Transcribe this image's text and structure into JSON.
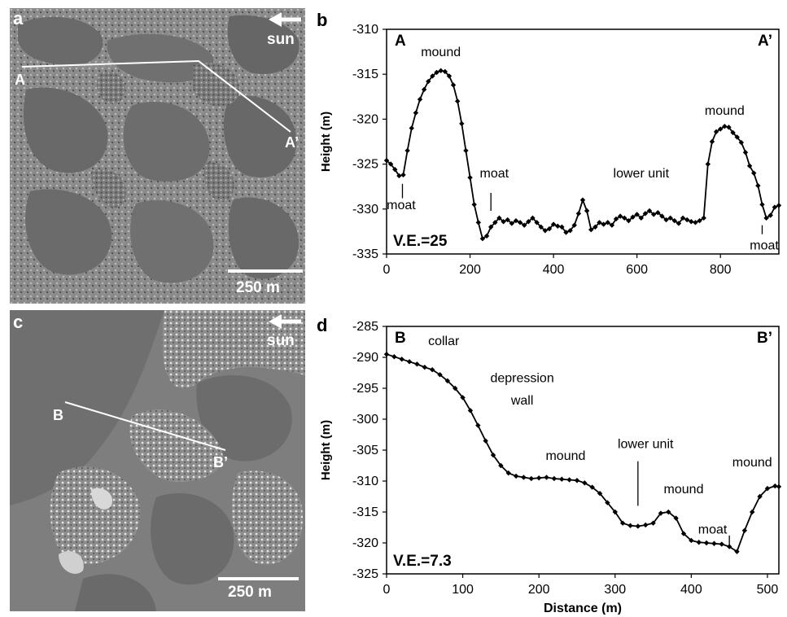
{
  "panels": {
    "a": {
      "letter": "a",
      "sun_label": "sun",
      "scale_label": "250 m",
      "profile_start": "A",
      "profile_end": "A’"
    },
    "c": {
      "letter": "c",
      "sun_label": "sun",
      "scale_label": "250 m",
      "profile_start": "B",
      "profile_end": "B’"
    }
  },
  "chart_data": [
    {
      "id": "b",
      "type": "line",
      "panel_letter": "b",
      "title": "",
      "xlabel": "",
      "ylabel": "Height (m)",
      "xlim": [
        0,
        940
      ],
      "ylim": [
        -335,
        -310
      ],
      "x_ticks": [
        0,
        200,
        400,
        600,
        800
      ],
      "y_ticks": [
        -335,
        -330,
        -325,
        -320,
        -315,
        -310
      ],
      "corner_left": "A",
      "corner_right": "A’",
      "ve_label": "V.E.=25",
      "marker": "diamond",
      "grid": false,
      "series": [
        {
          "x": [
            0,
            10,
            20,
            30,
            40,
            50,
            60,
            70,
            80,
            90,
            100,
            110,
            120,
            130,
            140,
            150,
            160,
            170,
            180,
            190,
            200,
            210,
            220,
            230,
            240,
            250,
            260,
            270,
            280,
            290,
            300,
            310,
            320,
            330,
            340,
            350,
            360,
            370,
            380,
            390,
            400,
            410,
            420,
            430,
            440,
            450,
            460,
            470,
            480,
            490,
            500,
            510,
            520,
            530,
            540,
            550,
            560,
            570,
            580,
            590,
            600,
            610,
            620,
            630,
            640,
            650,
            660,
            670,
            680,
            690,
            700,
            710,
            720,
            730,
            740,
            750,
            760,
            770,
            780,
            790,
            800,
            810,
            820,
            830,
            840,
            850,
            860,
            870,
            880,
            890,
            900,
            910,
            920,
            930,
            940
          ],
          "y": [
            -324.6,
            -325.0,
            -325.6,
            -326.3,
            -326.2,
            -323.5,
            -321.0,
            -319.3,
            -317.8,
            -316.7,
            -315.8,
            -315.2,
            -314.8,
            -314.6,
            -314.7,
            -315.2,
            -316.2,
            -318.0,
            -320.5,
            -323.5,
            -326.5,
            -329.5,
            -331.5,
            -333.3,
            -333.0,
            -332.0,
            -331.5,
            -331.0,
            -331.4,
            -331.2,
            -331.6,
            -331.3,
            -331.5,
            -331.8,
            -331.4,
            -331.0,
            -331.5,
            -332.0,
            -332.4,
            -332.2,
            -331.7,
            -331.9,
            -332.0,
            -332.6,
            -332.4,
            -331.8,
            -330.5,
            -329.0,
            -330.2,
            -332.3,
            -332.0,
            -331.5,
            -331.7,
            -331.5,
            -331.8,
            -331.1,
            -330.8,
            -331.0,
            -331.3,
            -330.9,
            -330.6,
            -331.0,
            -330.5,
            -330.2,
            -330.6,
            -330.4,
            -330.8,
            -331.2,
            -331.0,
            -331.3,
            -331.6,
            -331.0,
            -331.2,
            -331.4,
            -331.5,
            -331.3,
            -331.0,
            -325.0,
            -322.5,
            -321.4,
            -321.1,
            -320.8,
            -320.9,
            -321.5,
            -322.0,
            -322.6,
            -323.7,
            -325.2,
            -326.0,
            -327.4,
            -329.5,
            -331.0,
            -330.7,
            -329.8,
            -329.6
          ]
        }
      ],
      "annotations": [
        {
          "text": "mound",
          "x": 130,
          "y": -313.0
        },
        {
          "text": "moat",
          "x": 35,
          "y": -330.0,
          "line_x": 38,
          "line_y_from": -327.2,
          "line_y_to": -328.8
        },
        {
          "text": "moat",
          "x": 258,
          "y": -326.5,
          "line_x": 250,
          "line_y_from": -328.2,
          "line_y_to": -330.2
        },
        {
          "text": "lower unit",
          "x": 610,
          "y": -326.5
        },
        {
          "text": "mound",
          "x": 810,
          "y": -319.5
        },
        {
          "text": "moat",
          "x": 905,
          "y": -334.5,
          "line_x": 900,
          "line_y_from": -332.8,
          "line_y_to": -331.8
        }
      ]
    },
    {
      "id": "d",
      "type": "line",
      "panel_letter": "d",
      "title": "",
      "xlabel": "Distance (m)",
      "ylabel": "Height (m)",
      "xlim": [
        0,
        515
      ],
      "ylim": [
        -325,
        -285
      ],
      "x_ticks": [
        0,
        100,
        200,
        300,
        400,
        500
      ],
      "y_ticks": [
        -325,
        -320,
        -315,
        -310,
        -305,
        -300,
        -295,
        -290,
        -285
      ],
      "corner_left": "B",
      "corner_right": "B’",
      "ve_label": "V.E.=7.3",
      "marker": "diamond",
      "grid": false,
      "series": [
        {
          "x": [
            0,
            10,
            20,
            30,
            40,
            50,
            60,
            70,
            80,
            90,
            100,
            110,
            120,
            130,
            140,
            150,
            160,
            170,
            180,
            190,
            200,
            210,
            220,
            230,
            240,
            250,
            260,
            270,
            280,
            290,
            300,
            310,
            320,
            330,
            340,
            350,
            360,
            370,
            380,
            390,
            400,
            410,
            420,
            430,
            440,
            450,
            460,
            470,
            480,
            490,
            500,
            510,
            515
          ],
          "y": [
            -289.5,
            -289.9,
            -290.3,
            -290.7,
            -291.1,
            -291.6,
            -292.0,
            -292.8,
            -293.8,
            -295.0,
            -296.5,
            -298.6,
            -301.0,
            -303.5,
            -305.8,
            -307.5,
            -308.7,
            -309.2,
            -309.4,
            -309.6,
            -309.5,
            -309.4,
            -309.6,
            -309.7,
            -309.8,
            -309.9,
            -310.3,
            -311.0,
            -312.0,
            -313.5,
            -315.0,
            -316.8,
            -317.2,
            -317.3,
            -317.1,
            -316.8,
            -315.2,
            -315.0,
            -316.0,
            -318.5,
            -319.6,
            -319.9,
            -320.0,
            -320.1,
            -320.2,
            -320.6,
            -321.4,
            -318.0,
            -315.0,
            -312.5,
            -311.2,
            -310.8,
            -310.9
          ]
        }
      ],
      "annotations": [
        {
          "text": "collar",
          "x": 75,
          "y": -288.0
        },
        {
          "text": "depression",
          "x": 178,
          "y": -294.0
        },
        {
          "text": "wall",
          "x": 178,
          "y": -297.6
        },
        {
          "text": "mound",
          "x": 235,
          "y": -306.6
        },
        {
          "text": "lower unit",
          "x": 340,
          "y": -304.7,
          "line_x": 330,
          "line_y_from": -306.8,
          "line_y_to": -314.0
        },
        {
          "text": "mound",
          "x": 390,
          "y": -312.0
        },
        {
          "text": "moat",
          "x": 428,
          "y": -318.5,
          "line_x": 450,
          "line_y_from": -318.8,
          "line_y_to": -320.6
        },
        {
          "text": "mound",
          "x": 480,
          "y": -307.6
        }
      ]
    }
  ]
}
